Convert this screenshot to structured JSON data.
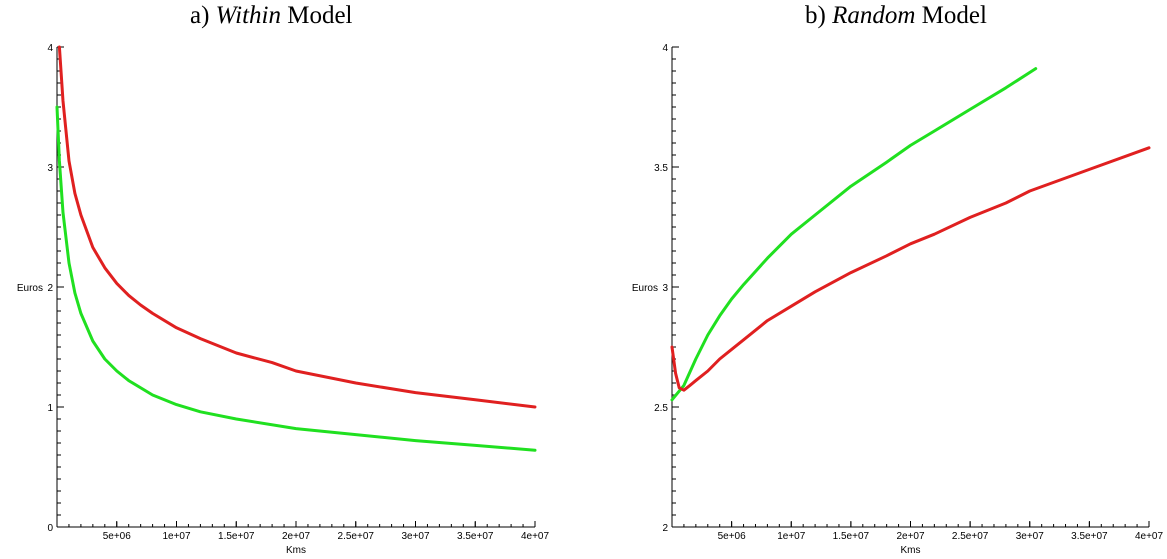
{
  "chart_data": [
    {
      "type": "line",
      "panel_label": "a)",
      "title_italic": "Within",
      "title_rest": "Model",
      "xlabel": "Kms",
      "ylabel": "Euros",
      "xlim": [
        0,
        40000000
      ],
      "ylim": [
        0,
        4
      ],
      "x_ticks": [
        {
          "value": 5000000,
          "label": "5e+06"
        },
        {
          "value": 10000000,
          "label": "1e+07"
        },
        {
          "value": 15000000,
          "label": "1.5e+07"
        },
        {
          "value": 20000000,
          "label": "2e+07"
        },
        {
          "value": 25000000,
          "label": "2.5e+07"
        },
        {
          "value": 30000000,
          "label": "3e+07"
        },
        {
          "value": 35000000,
          "label": "3.5e+07"
        },
        {
          "value": 40000000,
          "label": "4e+07"
        }
      ],
      "y_ticks": [
        {
          "value": 0,
          "label": "0"
        },
        {
          "value": 1,
          "label": "1"
        },
        {
          "value": 2,
          "label": "2"
        },
        {
          "value": 3,
          "label": "3"
        },
        {
          "value": 4,
          "label": "4"
        }
      ],
      "grid": false,
      "series": [
        {
          "color": "#e02020",
          "x": [
            200000,
            500000,
            1000000,
            1500000,
            2000000,
            3000000,
            4000000,
            5000000,
            6000000,
            7000000,
            8000000,
            10000000,
            12000000,
            15000000,
            18000000,
            20000000,
            25000000,
            30000000,
            35000000,
            40000000
          ],
          "y": [
            4.0,
            3.55,
            3.05,
            2.78,
            2.6,
            2.33,
            2.16,
            2.03,
            1.93,
            1.85,
            1.78,
            1.66,
            1.57,
            1.45,
            1.37,
            1.3,
            1.2,
            1.12,
            1.06,
            1.0
          ]
        },
        {
          "color": "#20e020",
          "x": [
            0,
            200000,
            500000,
            1000000,
            1500000,
            2000000,
            3000000,
            4000000,
            5000000,
            6000000,
            8000000,
            10000000,
            12000000,
            15000000,
            20000000,
            25000000,
            30000000,
            35000000,
            40000000
          ],
          "y": [
            3.5,
            3.05,
            2.62,
            2.2,
            1.95,
            1.78,
            1.55,
            1.4,
            1.3,
            1.22,
            1.1,
            1.02,
            0.96,
            0.9,
            0.82,
            0.77,
            0.72,
            0.68,
            0.64
          ]
        }
      ]
    },
    {
      "type": "line",
      "panel_label": "b)",
      "title_italic": "Random",
      "title_rest": "Model",
      "xlabel": "Kms",
      "ylabel": "Euros",
      "xlim": [
        0,
        40000000
      ],
      "ylim": [
        2,
        4
      ],
      "x_ticks": [
        {
          "value": 5000000,
          "label": "5e+06"
        },
        {
          "value": 10000000,
          "label": "1e+07"
        },
        {
          "value": 15000000,
          "label": "1.5e+07"
        },
        {
          "value": 20000000,
          "label": "2e+07"
        },
        {
          "value": 25000000,
          "label": "2.5e+07"
        },
        {
          "value": 30000000,
          "label": "3e+07"
        },
        {
          "value": 35000000,
          "label": "3.5e+07"
        },
        {
          "value": 40000000,
          "label": "4e+07"
        }
      ],
      "y_ticks": [
        {
          "value": 2,
          "label": "2"
        },
        {
          "value": 2.5,
          "label": "2.5"
        },
        {
          "value": 3,
          "label": "3"
        },
        {
          "value": 3.5,
          "label": "3.5"
        },
        {
          "value": 4,
          "label": "4"
        }
      ],
      "grid": false,
      "series": [
        {
          "color": "#20e020",
          "x": [
            0,
            1000000,
            2000000,
            3000000,
            4000000,
            5000000,
            6000000,
            8000000,
            10000000,
            12000000,
            15000000,
            18000000,
            20000000,
            22000000,
            25000000,
            28000000,
            30500000
          ],
          "y": [
            2.53,
            2.59,
            2.7,
            2.8,
            2.88,
            2.95,
            3.01,
            3.12,
            3.22,
            3.3,
            3.42,
            3.52,
            3.59,
            3.65,
            3.74,
            3.83,
            3.91
          ]
        },
        {
          "color": "#e02020",
          "x": [
            0,
            300000,
            600000,
            1000000,
            1500000,
            2000000,
            3000000,
            4000000,
            5000000,
            6000000,
            8000000,
            10000000,
            12000000,
            15000000,
            18000000,
            20000000,
            22000000,
            25000000,
            28000000,
            30000000,
            35000000,
            40000000
          ],
          "y": [
            2.75,
            2.64,
            2.58,
            2.57,
            2.59,
            2.61,
            2.65,
            2.7,
            2.74,
            2.78,
            2.86,
            2.92,
            2.98,
            3.06,
            3.13,
            3.18,
            3.22,
            3.29,
            3.35,
            3.4,
            3.49,
            3.58
          ]
        }
      ]
    }
  ]
}
